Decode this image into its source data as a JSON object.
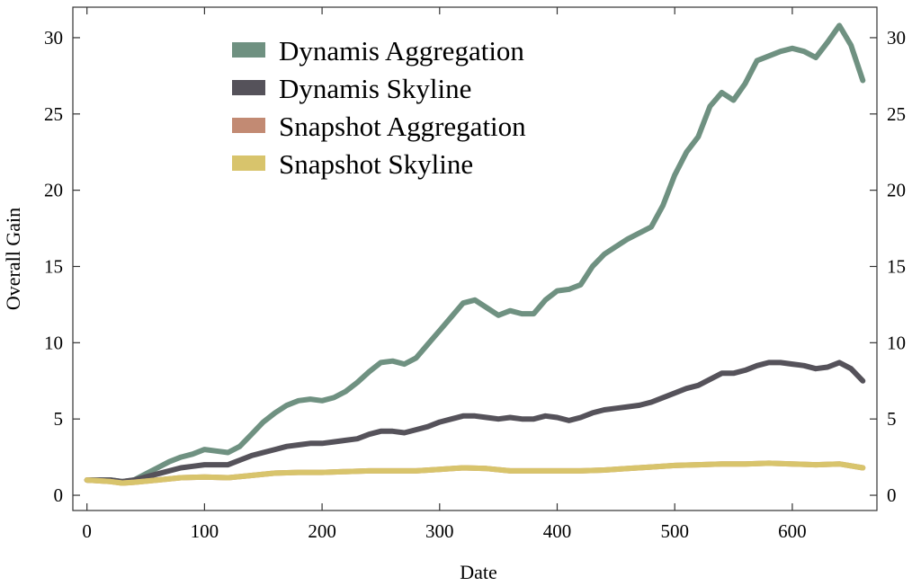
{
  "chart_data": {
    "type": "line",
    "title": "",
    "xlabel": "Date",
    "ylabel": "Overall Gain",
    "xlim": [
      -12,
      672
    ],
    "ylim": [
      -1,
      32
    ],
    "xticks": [
      0,
      100,
      200,
      300,
      400,
      500,
      600
    ],
    "yticks": [
      0,
      5,
      10,
      15,
      20,
      25,
      30
    ],
    "grid": false,
    "legend_position": "top-left",
    "series": [
      {
        "name": "Dynamis Aggregation",
        "color": "#6f9181",
        "x": [
          0,
          20,
          30,
          40,
          50,
          60,
          70,
          80,
          90,
          100,
          110,
          120,
          130,
          140,
          150,
          160,
          170,
          180,
          190,
          200,
          210,
          220,
          230,
          240,
          250,
          260,
          270,
          280,
          290,
          300,
          310,
          320,
          330,
          340,
          350,
          360,
          370,
          380,
          390,
          400,
          410,
          420,
          430,
          440,
          450,
          460,
          470,
          480,
          490,
          500,
          510,
          520,
          530,
          540,
          550,
          560,
          570,
          580,
          590,
          600,
          610,
          620,
          630,
          640,
          650,
          660
        ],
        "y": [
          1.0,
          1.0,
          0.9,
          1.0,
          1.4,
          1.8,
          2.2,
          2.5,
          2.7,
          3.0,
          2.9,
          2.8,
          3.2,
          4.0,
          4.8,
          5.4,
          5.9,
          6.2,
          6.3,
          6.2,
          6.4,
          6.8,
          7.4,
          8.1,
          8.7,
          8.8,
          8.6,
          9.0,
          9.9,
          10.8,
          11.7,
          12.6,
          12.8,
          12.3,
          11.8,
          12.1,
          11.9,
          11.9,
          12.8,
          13.4,
          13.5,
          13.8,
          15.0,
          15.8,
          16.3,
          16.8,
          17.2,
          17.6,
          19.0,
          21.0,
          22.5,
          23.5,
          25.5,
          26.4,
          25.9,
          27.0,
          28.5,
          28.8,
          29.1,
          29.3,
          29.1,
          28.7,
          29.7,
          30.8,
          29.5,
          27.2
        ]
      },
      {
        "name": "Dynamis Skyline",
        "color": "#55525a",
        "x": [
          0,
          20,
          30,
          40,
          50,
          60,
          70,
          80,
          90,
          100,
          110,
          120,
          130,
          140,
          150,
          160,
          170,
          180,
          190,
          200,
          210,
          220,
          230,
          240,
          250,
          260,
          270,
          280,
          290,
          300,
          310,
          320,
          330,
          340,
          350,
          360,
          370,
          380,
          390,
          400,
          410,
          420,
          430,
          440,
          450,
          460,
          470,
          480,
          490,
          500,
          510,
          520,
          530,
          540,
          550,
          560,
          570,
          580,
          590,
          600,
          610,
          620,
          630,
          640,
          650,
          660
        ],
        "y": [
          1.0,
          1.0,
          0.9,
          1.0,
          1.2,
          1.4,
          1.6,
          1.8,
          1.9,
          2.0,
          2.0,
          2.0,
          2.3,
          2.6,
          2.8,
          3.0,
          3.2,
          3.3,
          3.4,
          3.4,
          3.5,
          3.6,
          3.7,
          4.0,
          4.2,
          4.2,
          4.1,
          4.3,
          4.5,
          4.8,
          5.0,
          5.2,
          5.2,
          5.1,
          5.0,
          5.1,
          5.0,
          5.0,
          5.2,
          5.1,
          4.9,
          5.1,
          5.4,
          5.6,
          5.7,
          5.8,
          5.9,
          6.1,
          6.4,
          6.7,
          7.0,
          7.2,
          7.6,
          8.0,
          8.0,
          8.2,
          8.5,
          8.7,
          8.7,
          8.6,
          8.5,
          8.3,
          8.4,
          8.7,
          8.3,
          7.5
        ]
      },
      {
        "name": "Snapshot Aggregation",
        "color": "#c28a73",
        "x": [
          0,
          20,
          30,
          40,
          60,
          80,
          100,
          120,
          140,
          160,
          180,
          200,
          220,
          240,
          260,
          280,
          300,
          320,
          340,
          360,
          380,
          400,
          420,
          440,
          460,
          480,
          500,
          520,
          540,
          560,
          580,
          600,
          620,
          640,
          660
        ],
        "y": [
          1.0,
          0.9,
          0.8,
          0.85,
          1.0,
          1.15,
          1.2,
          1.15,
          1.3,
          1.45,
          1.5,
          1.5,
          1.55,
          1.6,
          1.6,
          1.6,
          1.7,
          1.8,
          1.75,
          1.6,
          1.6,
          1.6,
          1.6,
          1.65,
          1.75,
          1.85,
          1.95,
          2.0,
          2.05,
          2.05,
          2.1,
          2.05,
          2.0,
          2.05,
          1.8
        ]
      },
      {
        "name": "Snapshot Skyline",
        "color": "#d8c46c",
        "x": [
          0,
          20,
          30,
          40,
          60,
          80,
          100,
          120,
          140,
          160,
          180,
          200,
          220,
          240,
          260,
          280,
          300,
          320,
          340,
          360,
          380,
          400,
          420,
          440,
          460,
          480,
          500,
          520,
          540,
          560,
          580,
          600,
          620,
          640,
          660
        ],
        "y": [
          1.0,
          0.9,
          0.8,
          0.85,
          1.0,
          1.15,
          1.2,
          1.15,
          1.3,
          1.45,
          1.5,
          1.5,
          1.55,
          1.6,
          1.6,
          1.6,
          1.7,
          1.8,
          1.75,
          1.6,
          1.6,
          1.6,
          1.6,
          1.65,
          1.75,
          1.85,
          1.95,
          2.0,
          2.05,
          2.05,
          2.1,
          2.05,
          2.0,
          2.05,
          1.8
        ]
      }
    ]
  }
}
